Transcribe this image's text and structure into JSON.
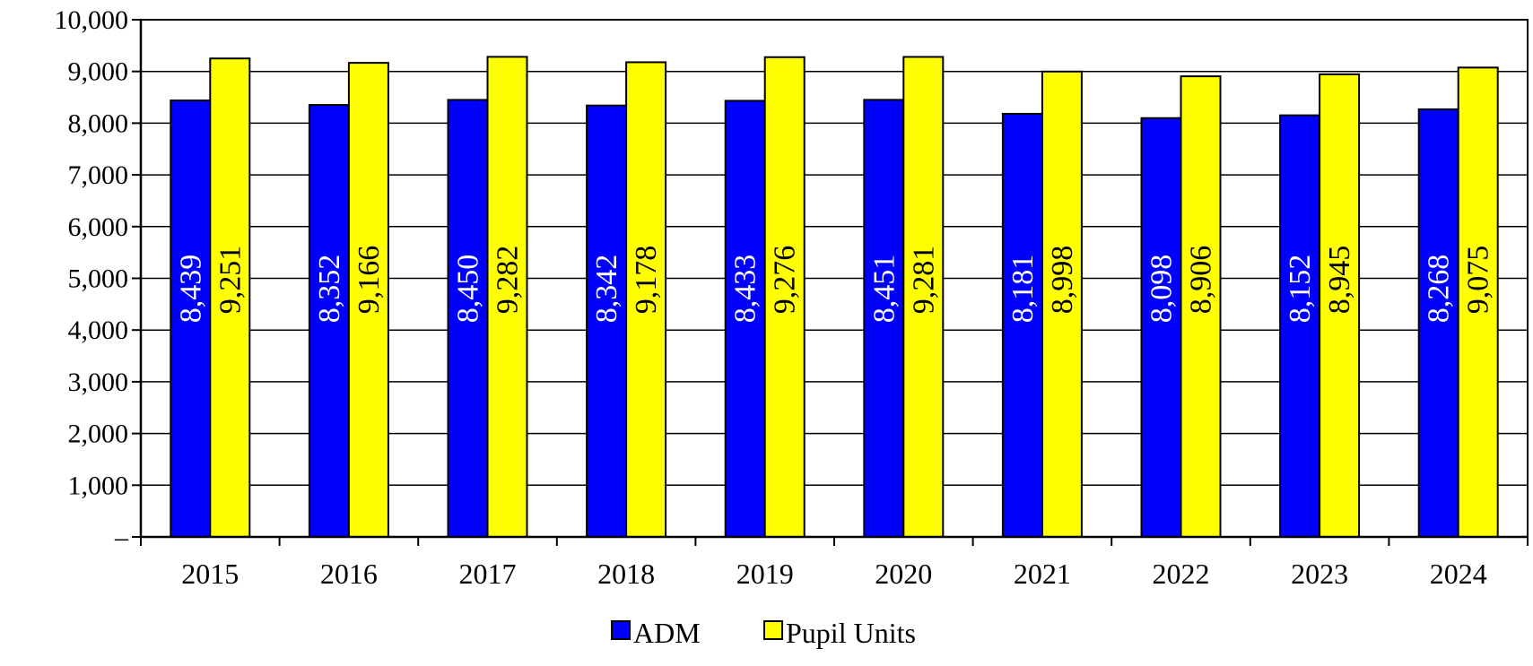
{
  "chart_data": {
    "type": "bar",
    "categories": [
      "2015",
      "2016",
      "2017",
      "2018",
      "2019",
      "2020",
      "2021",
      "2022",
      "2023",
      "2024"
    ],
    "series": [
      {
        "name": "ADM",
        "color": "#0000ff",
        "label_color": "#ffffff",
        "values": [
          8439,
          8352,
          8450,
          8342,
          8433,
          8451,
          8181,
          8098,
          8152,
          8268
        ],
        "labels": [
          "8,439",
          "8,352",
          "8,450",
          "8,342",
          "8,433",
          "8,451",
          "8,181",
          "8,098",
          "8,152",
          "8,268"
        ]
      },
      {
        "name": "Pupil Units",
        "color": "#ffff00",
        "label_color": "#000000",
        "values": [
          9251,
          9166,
          9282,
          9178,
          9276,
          9281,
          8998,
          8906,
          8945,
          9075
        ],
        "labels": [
          "9,251",
          "9,166",
          "9,282",
          "9,178",
          "9,276",
          "9,281",
          "8,998",
          "8,906",
          "8,945",
          "9,075"
        ]
      }
    ],
    "ylim": [
      0,
      10000
    ],
    "yticks": [
      0,
      1000,
      2000,
      3000,
      4000,
      5000,
      6000,
      7000,
      8000,
      9000,
      10000
    ],
    "ytick_labels": [
      "–",
      "1,000",
      "2,000",
      "3,000",
      "4,000",
      "5,000",
      "6,000",
      "7,000",
      "8,000",
      "9,000",
      "10,000"
    ],
    "grid": true,
    "legend": "bottom-center"
  }
}
